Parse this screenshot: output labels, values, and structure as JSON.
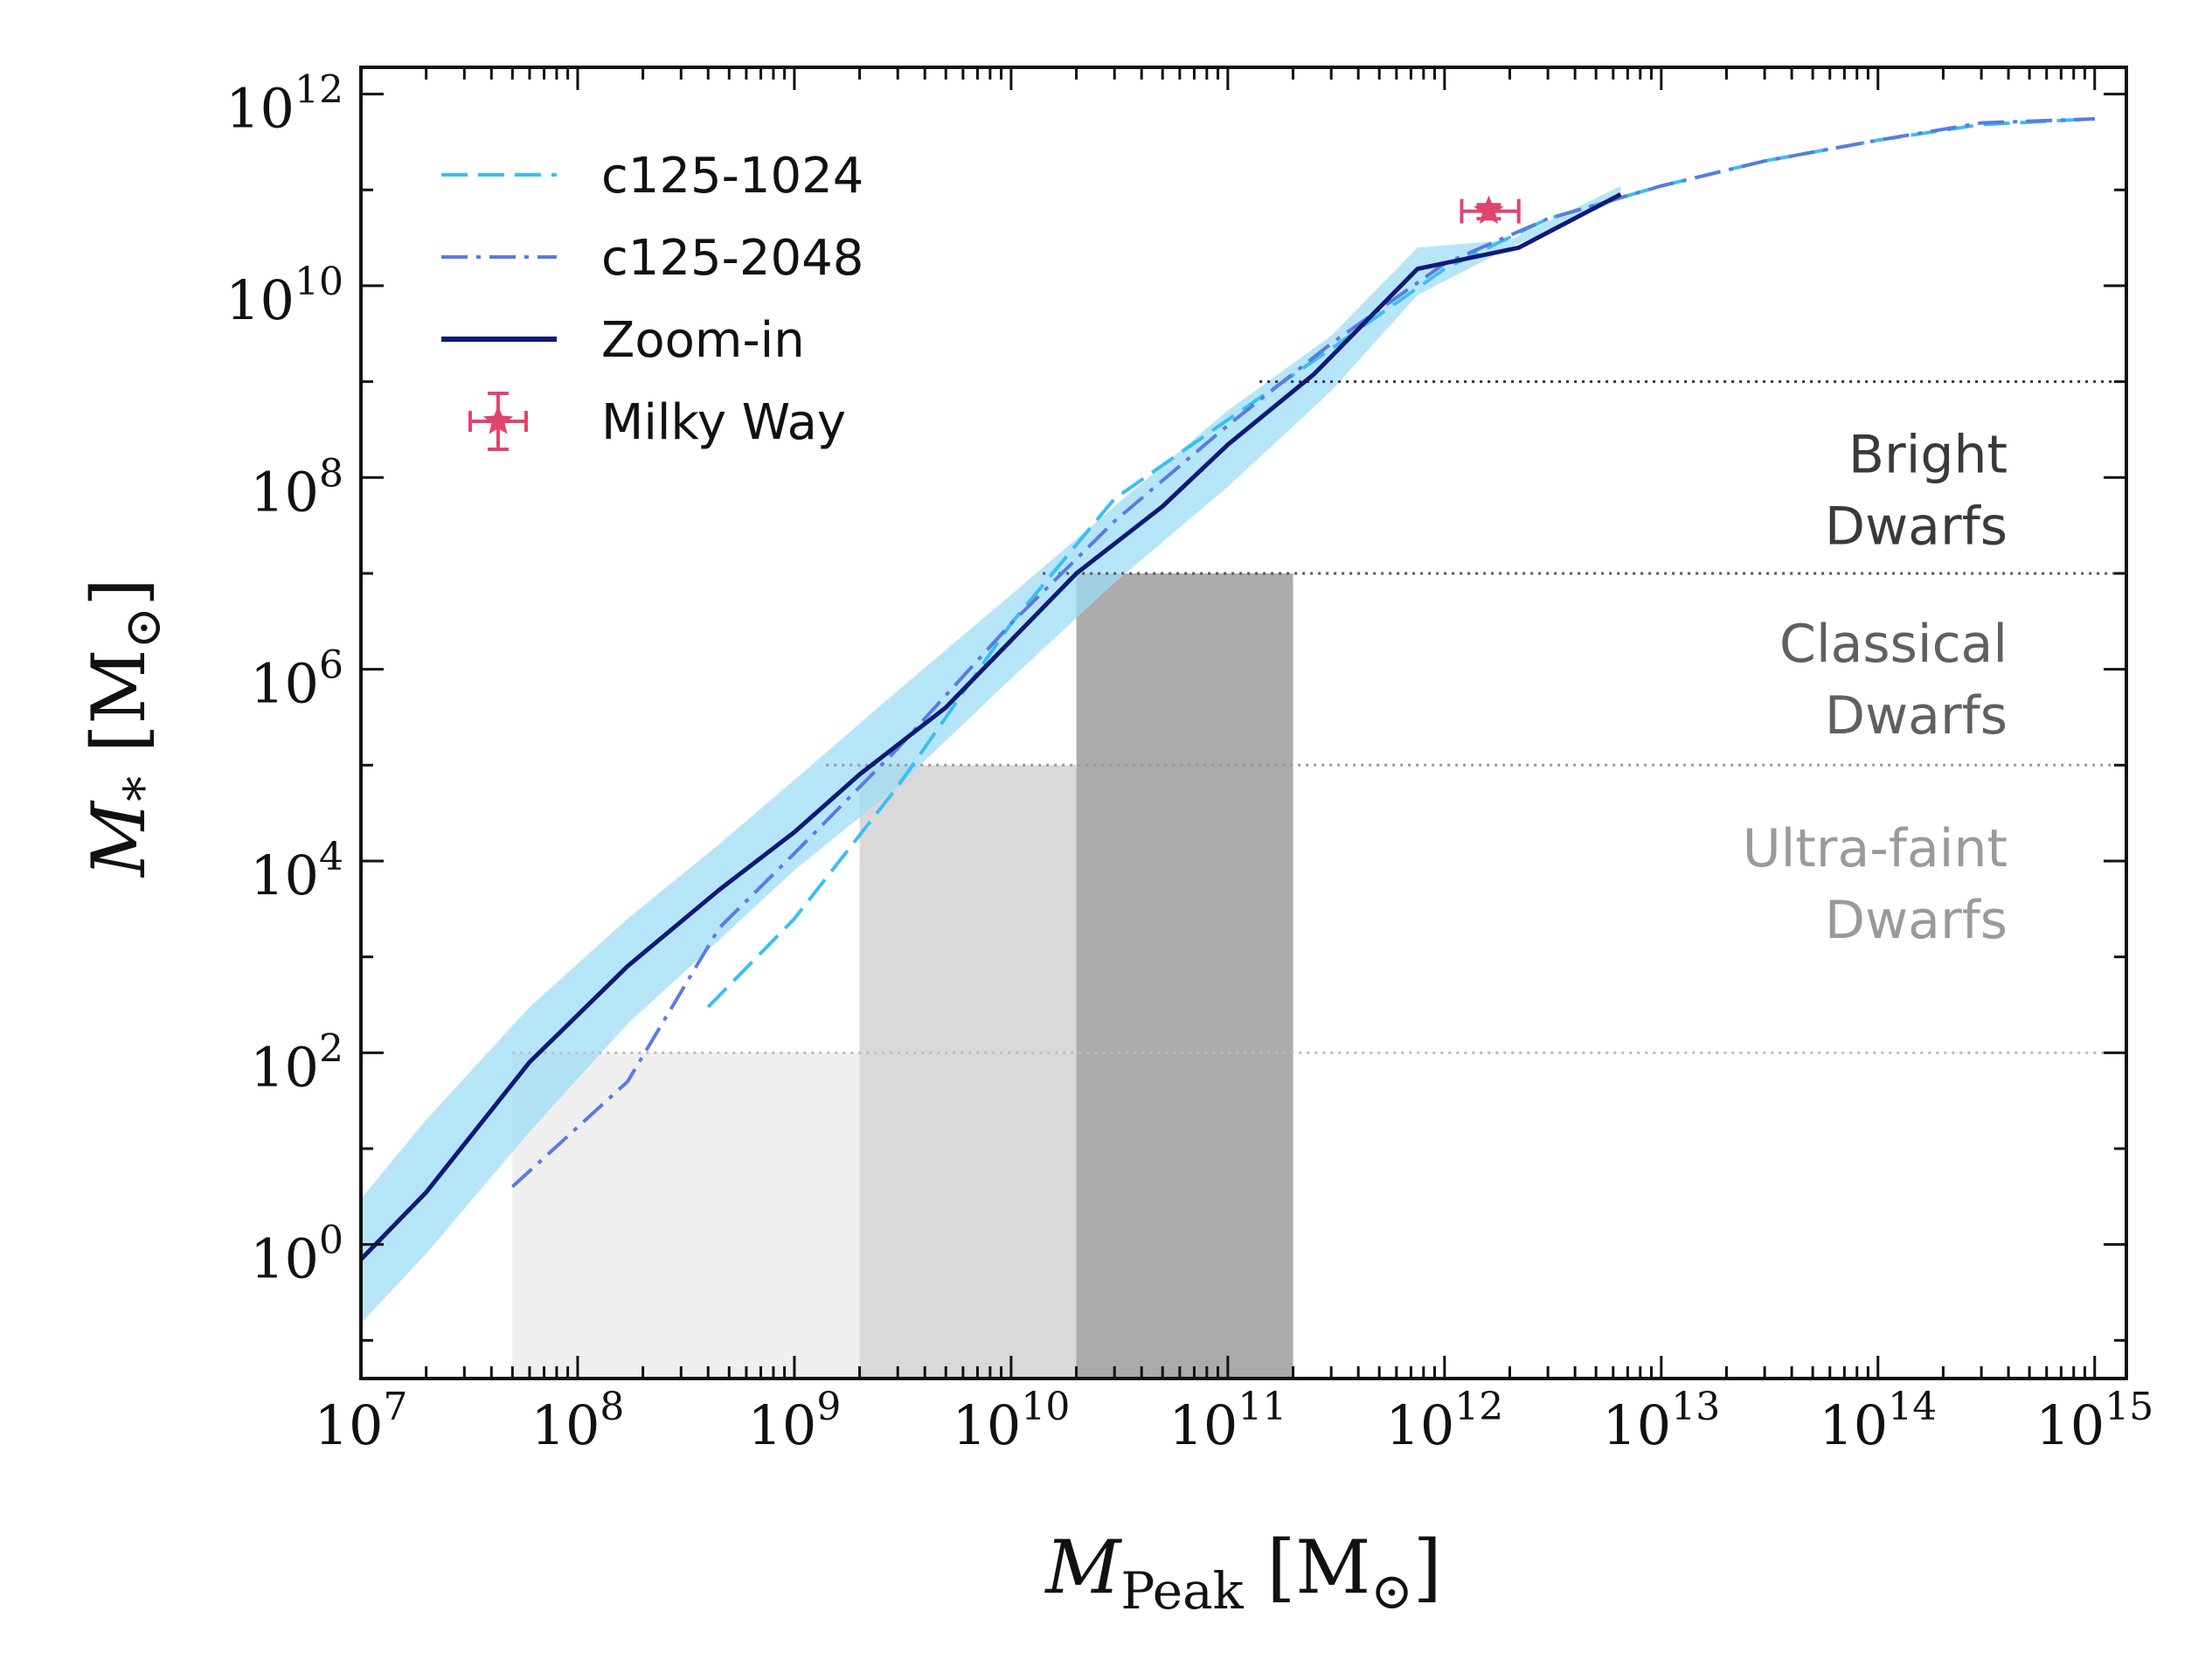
{
  "chart_data": {
    "type": "line",
    "xlabel": {
      "main": "M",
      "sub": "Peak",
      "unit_main": "M",
      "unit_sub": "⊙"
    },
    "ylabel": {
      "main": "M",
      "sub": "*",
      "unit_main": "M",
      "unit_sub": "⊙"
    },
    "xscale": "log",
    "yscale": "log",
    "xlim": [
      10000000.0,
      1400000000000000.0
    ],
    "ylim": [
      0.04,
      1900000000000.0
    ],
    "x_ticks": [
      {
        "base": "10",
        "exp": "7"
      },
      {
        "base": "10",
        "exp": "8"
      },
      {
        "base": "10",
        "exp": "9"
      },
      {
        "base": "10",
        "exp": "10"
      },
      {
        "base": "10",
        "exp": "11"
      },
      {
        "base": "10",
        "exp": "12"
      },
      {
        "base": "10",
        "exp": "13"
      },
      {
        "base": "10",
        "exp": "14"
      },
      {
        "base": "10",
        "exp": "15"
      }
    ],
    "y_ticks": [
      {
        "base": "10",
        "exp": "0"
      },
      {
        "base": "10",
        "exp": "2"
      },
      {
        "base": "10",
        "exp": "4"
      },
      {
        "base": "10",
        "exp": "6"
      },
      {
        "base": "10",
        "exp": "8"
      },
      {
        "base": "10",
        "exp": "10"
      },
      {
        "base": "10",
        "exp": "12"
      }
    ],
    "legend_position": "top-left",
    "legend": [
      {
        "label": "c125-1024",
        "color": "#39c0f0",
        "style": "dashed"
      },
      {
        "label": "c125-2048",
        "color": "#5b7be0",
        "style": "dashdot"
      },
      {
        "label": "Zoom-in",
        "color": "#0f1a75",
        "style": "solid"
      },
      {
        "label": "Milky Way",
        "color": "#e0456e",
        "style": "errorbar-star"
      }
    ],
    "series": [
      {
        "name": "c125-1024",
        "color": "#39c0f0",
        "x": [
          400000000.0,
          1000000000.0,
          3000000000.0,
          10000000000.0,
          30000000000.0,
          100000000000.0,
          300000000000.0,
          1000000000000.0,
          3000000000000.0,
          10000000000000.0,
          30000000000000.0,
          100000000000000.0,
          300000000000000.0,
          1000000000000000.0
        ],
        "y": [
          300,
          2500,
          60000,
          3000000.0,
          60000000.0,
          400000000.0,
          2200000000.0,
          15000000000.0,
          50000000000.0,
          110000000000.0,
          200000000000.0,
          330000000000.0,
          480000000000.0,
          550000000000.0
        ]
      },
      {
        "name": "c125-2048",
        "color": "#5b7be0",
        "x": [
          50000000.0,
          170000000.0,
          450000000.0,
          1000000000.0,
          3000000000.0,
          10000000000.0,
          30000000000.0,
          100000000000.0,
          300000000000.0,
          1000000000000.0,
          3000000000000.0,
          10000000000000.0,
          30000000000000.0,
          100000000000000.0,
          300000000000000.0,
          1000000000000000.0
        ],
        "y": [
          4,
          50,
          2000,
          12000,
          150000,
          3000000.0,
          35000000.0,
          350000000.0,
          2500000000.0,
          17000000000.0,
          50000000000.0,
          110000000000.0,
          200000000000.0,
          330000000000.0,
          500000000000.0,
          550000000000.0
        ]
      },
      {
        "name": "Zoom-in",
        "color": "#0f1a75",
        "x": [
          10000000.0,
          20000000.0,
          60000000.0,
          170000000.0,
          450000000.0,
          1000000000.0,
          2000000000.0,
          5000000000.0,
          10000000000.0,
          20000000000.0,
          50000000000.0,
          100000000000.0,
          250000000000.0,
          750000000000.0,
          2200000000000.0,
          6500000000000.0
        ],
        "y": [
          0.7,
          3.5,
          80,
          800,
          5000,
          20000,
          80000,
          400000.0,
          2000000.0,
          10000000.0,
          50000000.0,
          220000000.0,
          1200000000.0,
          15000000000.0,
          25000000000.0,
          90000000000.0
        ]
      }
    ],
    "scatter_band": {
      "name": "Zoom-in",
      "color": "#9fdcf5",
      "x": [
        10000000.0,
        20000000.0,
        60000000.0,
        170000000.0,
        450000000.0,
        1000000000.0,
        3000000000.0,
        10000000000.0,
        30000000000.0,
        100000000000.0,
        300000000000.0,
        750000000000.0,
        2000000000000.0,
        6500000000000.0
      ],
      "upper": [
        3,
        20,
        300,
        2500,
        15000,
        70000,
        600000,
        6000000.0,
        50000000.0,
        500000000.0,
        3000000000.0,
        25000000000.0,
        30000000000.0,
        110000000000.0
      ],
      "lower": [
        0.15,
        0.8,
        15,
        200,
        1500,
        8000,
        60000,
        800000.0,
        8000000.0,
        80000000.0,
        800000000.0,
        8000000000.0,
        25000000000.0,
        80000000000.0
      ]
    },
    "milky_way": {
      "x": 1600000000000.0,
      "x_err_low": 1200000000000.0,
      "x_err_high": 2200000000000.0,
      "y": 60000000000.0,
      "y_err_low": 50000000000.0,
      "y_err_high": 70000000000.0,
      "color": "#e0456e"
    },
    "shaded_regions": [
      {
        "x_range": [
          50000000.0,
          2000000000.0
        ],
        "y_top": 100,
        "color": "#efefef"
      },
      {
        "x_range": [
          2000000000.0,
          20000000000.0
        ],
        "y_top": 100000.0,
        "color": "#d9d9d9"
      },
      {
        "x_range": [
          20000000000.0,
          200000000000.0
        ],
        "y_top": 10000000.0,
        "color": "#ababab"
      }
    ],
    "hlines": [
      {
        "y": 1000000000.0,
        "x_start": 140000000000.0,
        "color": "#333333"
      },
      {
        "y": 10000000.0,
        "x_start": 14000000000.0,
        "color": "#555555"
      },
      {
        "y": 100000.0,
        "x_start": 1400000000.0,
        "color": "#999999"
      },
      {
        "y": 100,
        "x_start": 50000000.0,
        "color": "#bbbbbb"
      }
    ],
    "band_labels": [
      {
        "lines": [
          "Bright",
          "Dwarfs"
        ],
        "y_line1": 180000000.0,
        "color": "#3a3a3a"
      },
      {
        "lines": [
          "Classical",
          "Dwarfs"
        ],
        "y_line1": 1900000.0,
        "color": "#606060"
      },
      {
        "lines": [
          "Ultra-faint",
          "Dwarfs"
        ],
        "y_line1": 14000,
        "color": "#9a9a9a"
      }
    ]
  }
}
